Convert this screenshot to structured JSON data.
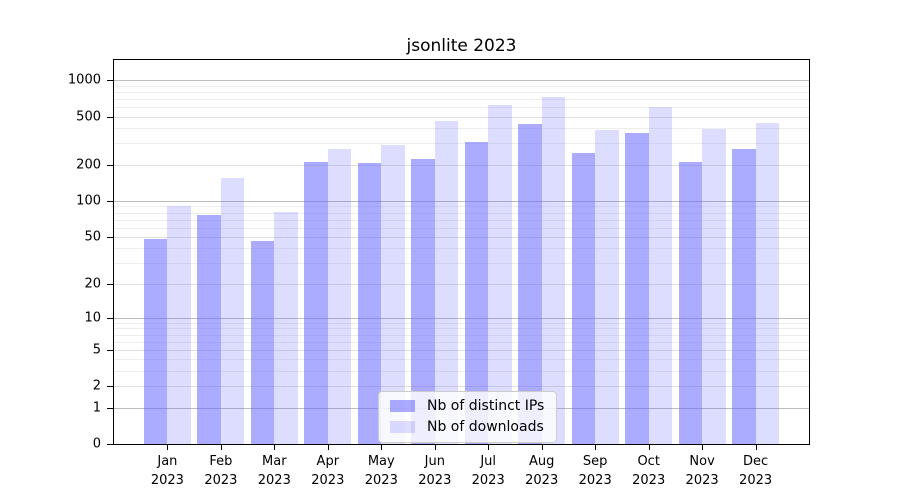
{
  "chart_data": {
    "type": "bar",
    "title": "jsonlite 2023",
    "categories": [
      "Jan\n2023",
      "Feb\n2023",
      "Mar\n2023",
      "Apr\n2023",
      "May\n2023",
      "Jun\n2023",
      "Jul\n2023",
      "Aug\n2023",
      "Sep\n2023",
      "Oct\n2023",
      "Nov\n2023",
      "Dec\n2023"
    ],
    "series": [
      {
        "name": "Nb of distinct IPs",
        "color": "rgba(102,102,255,0.55)",
        "values": [
          48,
          76,
          46,
          210,
          205,
          221,
          306,
          432,
          248,
          366,
          209,
          268
        ]
      },
      {
        "name": "Nb of downloads",
        "color": "rgba(102,102,255,0.22)",
        "values": [
          91,
          156,
          81,
          270,
          289,
          462,
          622,
          720,
          388,
          599,
          396,
          445
        ]
      }
    ],
    "xlabel": "",
    "ylabel": "",
    "yscale": "log10(value+1)",
    "yticks": [
      0,
      1,
      2,
      5,
      10,
      20,
      50,
      100,
      200,
      500,
      1000
    ],
    "ylim": [
      0,
      1465
    ],
    "grid": "horizontal major and log-minor lines",
    "legend_position": "inside bottom-center"
  }
}
